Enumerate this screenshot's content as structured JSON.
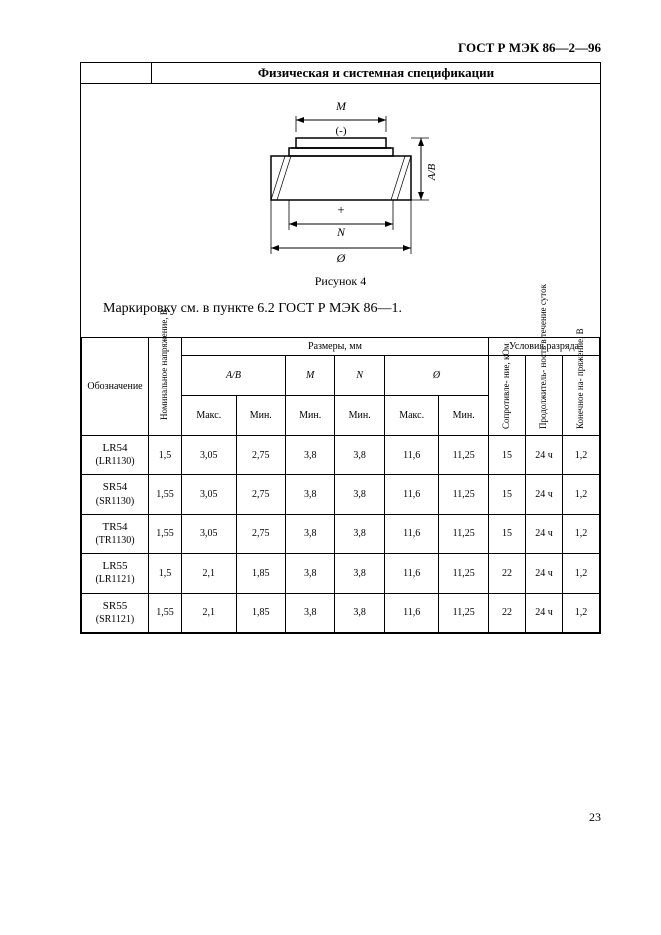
{
  "doc_id": "ГОСТ Р МЭК 86—2—96",
  "section_title": "Физическая и системная спецификации",
  "figure": {
    "caption": "Рисунок 4",
    "top_label": "М",
    "polarity_top": "(-)",
    "polarity_bottom": "+",
    "bottom_label": "N",
    "diameter_symbol": "Ø",
    "side_label": "A/B"
  },
  "marking_text": "Маркировку см. в пункте 6.2 ГОСТ Р МЭК 86—1.",
  "headers": {
    "designation": "Обозначение",
    "nominal_voltage": "Номинальное напряжение, В",
    "dimensions_group": "Размеры, мм",
    "discharge_group": "Условия разряда",
    "ab": "A/B",
    "m": "М",
    "n": "N",
    "diameter": "Ø",
    "max": "Макс.",
    "min": "Мин.",
    "resistance": "Сопротивле- ние, кОм",
    "duration": "Продолжитель- ность в течение суток",
    "end_voltage": "Конечное на- пряжение, В"
  },
  "rows": [
    {
      "name": "LR54",
      "alt": "(LR1130)",
      "v": "1,5",
      "ab_max": "3,05",
      "ab_min": "2,75",
      "m_min": "3,8",
      "n_min": "3,8",
      "d_max": "11,6",
      "d_min": "11,25",
      "r": "15",
      "dur": "24 ч",
      "ev": "1,2"
    },
    {
      "name": "SR54",
      "alt": "(SR1130)",
      "v": "1,55",
      "ab_max": "3,05",
      "ab_min": "2,75",
      "m_min": "3,8",
      "n_min": "3,8",
      "d_max": "11,6",
      "d_min": "11,25",
      "r": "15",
      "dur": "24 ч",
      "ev": "1,2"
    },
    {
      "name": "TR54",
      "alt": "(TR1130)",
      "v": "1,55",
      "ab_max": "3,05",
      "ab_min": "2,75",
      "m_min": "3,8",
      "n_min": "3,8",
      "d_max": "11,6",
      "d_min": "11,25",
      "r": "15",
      "dur": "24 ч",
      "ev": "1,2"
    },
    {
      "name": "LR55",
      "alt": "(LR1121)",
      "v": "1,5",
      "ab_max": "2,1",
      "ab_min": "1,85",
      "m_min": "3,8",
      "n_min": "3,8",
      "d_max": "11,6",
      "d_min": "11,25",
      "r": "22",
      "dur": "24 ч",
      "ev": "1,2"
    },
    {
      "name": "SR55",
      "alt": "(SR1121)",
      "v": "1,55",
      "ab_max": "2,1",
      "ab_min": "1,85",
      "m_min": "3,8",
      "n_min": "3,8",
      "d_max": "11,6",
      "d_min": "11,25",
      "r": "22",
      "dur": "24 ч",
      "ev": "1,2"
    }
  ],
  "page_number": "23"
}
